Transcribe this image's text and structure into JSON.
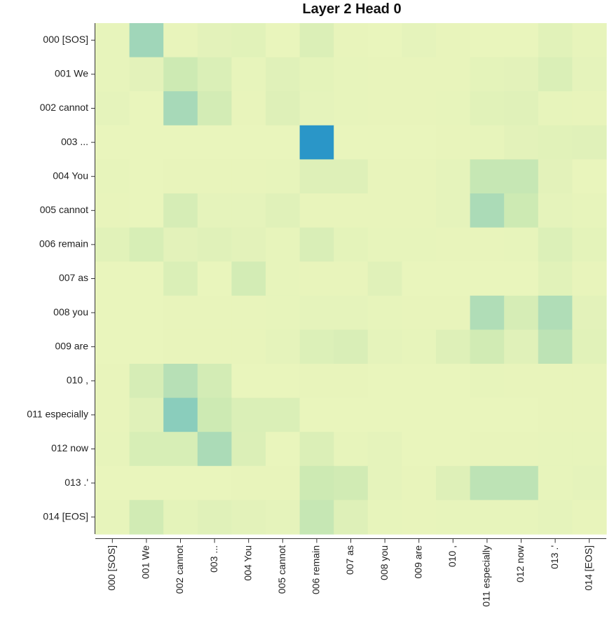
{
  "chart_data": {
    "type": "heatmap",
    "title": "Layer 2 Head 0",
    "xlabel": "",
    "ylabel": "",
    "x_labels": [
      "000 [SOS]",
      "001 We",
      "002 cannot",
      "003 ...",
      "004 You",
      "005 cannot",
      "006 remain",
      "007 as",
      "008 you",
      "009 are",
      "010 ,",
      "011 especially",
      "012 now",
      "013 .'",
      "014 [EOS]"
    ],
    "y_labels": [
      "000 [SOS]",
      "001 We",
      "002 cannot",
      "003 ...",
      "004 You",
      "005 cannot",
      "006 remain",
      "007 as",
      "008 you",
      "009 are",
      "010 ,",
      "011 especially",
      "012 now",
      "013 .'",
      "014 [EOS]"
    ],
    "values": [
      [
        0.05,
        0.45,
        0.04,
        0.08,
        0.09,
        0.03,
        0.14,
        0.04,
        0.03,
        0.06,
        0.04,
        0.03,
        0.03,
        0.09,
        0.05
      ],
      [
        0.05,
        0.08,
        0.25,
        0.15,
        0.05,
        0.1,
        0.07,
        0.05,
        0.04,
        0.04,
        0.04,
        0.07,
        0.08,
        0.15,
        0.06
      ],
      [
        0.06,
        0.03,
        0.42,
        0.2,
        0.04,
        0.12,
        0.06,
        0.05,
        0.04,
        0.04,
        0.05,
        0.09,
        0.1,
        0.05,
        0.04
      ],
      [
        0.03,
        0.03,
        0.03,
        0.03,
        0.03,
        0.03,
        1.0,
        0.03,
        0.03,
        0.03,
        0.04,
        0.05,
        0.08,
        0.09,
        0.1
      ],
      [
        0.05,
        0.03,
        0.04,
        0.04,
        0.04,
        0.05,
        0.12,
        0.12,
        0.04,
        0.04,
        0.06,
        0.28,
        0.28,
        0.08,
        0.03
      ],
      [
        0.04,
        0.03,
        0.18,
        0.06,
        0.06,
        0.1,
        0.04,
        0.04,
        0.04,
        0.04,
        0.06,
        0.4,
        0.25,
        0.06,
        0.05
      ],
      [
        0.09,
        0.17,
        0.08,
        0.1,
        0.08,
        0.05,
        0.16,
        0.07,
        0.05,
        0.05,
        0.04,
        0.04,
        0.05,
        0.13,
        0.07
      ],
      [
        0.03,
        0.03,
        0.15,
        0.03,
        0.2,
        0.05,
        0.04,
        0.04,
        0.1,
        0.03,
        0.03,
        0.03,
        0.03,
        0.09,
        0.04
      ],
      [
        0.03,
        0.03,
        0.04,
        0.04,
        0.04,
        0.05,
        0.06,
        0.06,
        0.05,
        0.04,
        0.04,
        0.38,
        0.18,
        0.38,
        0.08
      ],
      [
        0.03,
        0.03,
        0.04,
        0.04,
        0.04,
        0.06,
        0.13,
        0.16,
        0.06,
        0.05,
        0.12,
        0.22,
        0.1,
        0.32,
        0.09
      ],
      [
        0.04,
        0.18,
        0.35,
        0.2,
        0.03,
        0.03,
        0.04,
        0.04,
        0.03,
        0.03,
        0.03,
        0.05,
        0.04,
        0.04,
        0.04
      ],
      [
        0.04,
        0.1,
        0.55,
        0.25,
        0.15,
        0.15,
        0.03,
        0.03,
        0.03,
        0.03,
        0.03,
        0.03,
        0.03,
        0.04,
        0.04
      ],
      [
        0.05,
        0.17,
        0.17,
        0.4,
        0.14,
        0.03,
        0.14,
        0.05,
        0.06,
        0.03,
        0.03,
        0.04,
        0.04,
        0.05,
        0.05
      ],
      [
        0.03,
        0.03,
        0.03,
        0.03,
        0.04,
        0.04,
        0.25,
        0.22,
        0.06,
        0.04,
        0.12,
        0.32,
        0.32,
        0.05,
        0.06
      ],
      [
        0.05,
        0.22,
        0.07,
        0.1,
        0.08,
        0.06,
        0.28,
        0.12,
        0.05,
        0.04,
        0.05,
        0.05,
        0.05,
        0.06,
        0.04
      ]
    ],
    "color_scale": [
      "#edf6bd",
      "#cdeab3",
      "#95d1ba",
      "#5cbcc2",
      "#2a96c8"
    ],
    "grid": false,
    "legend": "none"
  }
}
